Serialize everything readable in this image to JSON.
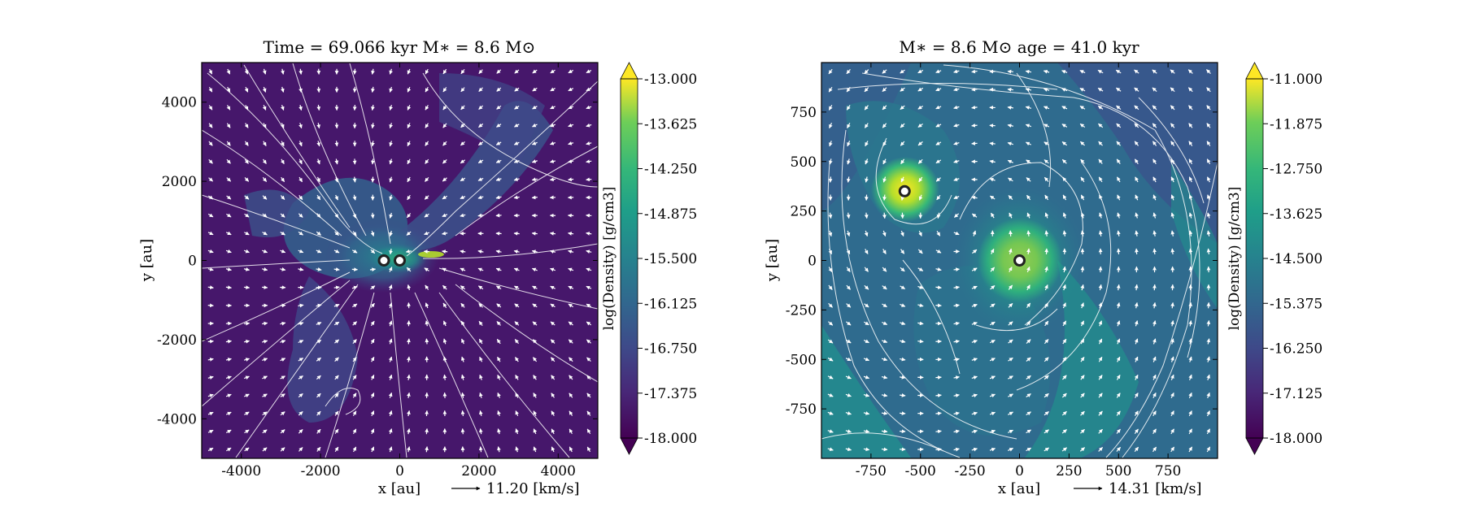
{
  "chart_data": [
    {
      "type": "heatmap",
      "title": "Time = 69.066 kyr    M∗ = 8.6 M⊙",
      "xlabel": "x [au]",
      "ylabel": "y [au]",
      "xlim": [
        -5000,
        5000
      ],
      "ylim": [
        -5000,
        5000
      ],
      "xticks": [
        -4000,
        -2000,
        0,
        2000,
        4000
      ],
      "xtick_labels": [
        "-4000",
        "-2000",
        "0",
        "2000",
        "4000"
      ],
      "yticks": [
        -4000,
        -2000,
        0,
        2000,
        4000
      ],
      "ytick_labels": [
        "-4000",
        "-2000",
        "0",
        "2000",
        "4000"
      ],
      "velocity_key": "11.20 [km/s]",
      "colorbar": {
        "label": "log(Density) [g/cm3]",
        "range": [
          -18.0,
          -13.0
        ],
        "ticks": [
          -13.0,
          -13.625,
          -14.25,
          -14.875,
          -15.5,
          -16.125,
          -16.75,
          -17.375,
          -18.0
        ],
        "tick_labels": [
          "-13.000",
          "-13.625",
          "-14.250",
          "-14.875",
          "-15.500",
          "-16.125",
          "-16.750",
          "-17.375",
          "-18.000"
        ]
      },
      "sinks": [
        {
          "x": -400,
          "y": 0
        },
        {
          "x": 0,
          "y": 0
        }
      ]
    },
    {
      "type": "heatmap",
      "title": "M∗ = 8.6 M⊙          age = 41.0 kyr",
      "xlabel": "x [au]",
      "ylabel": "y [au]",
      "xlim": [
        -1000,
        1000
      ],
      "ylim": [
        -1000,
        1000
      ],
      "xticks": [
        -750,
        -500,
        -250,
        0,
        250,
        500,
        750
      ],
      "xtick_labels": [
        "-750",
        "-500",
        "-250",
        "0",
        "250",
        "500",
        "750"
      ],
      "yticks": [
        -750,
        -500,
        -250,
        0,
        250,
        500,
        750
      ],
      "ytick_labels": [
        "-750",
        "-500",
        "-250",
        "0",
        "250",
        "500",
        "750"
      ],
      "velocity_key": "14.31 [km/s]",
      "colorbar": {
        "label": "log(Density) [g/cm3]",
        "range": [
          -18.0,
          -11.0
        ],
        "ticks": [
          -11.0,
          -11.875,
          -12.75,
          -13.625,
          -14.5,
          -15.375,
          -16.25,
          -17.125,
          -18.0
        ],
        "tick_labels": [
          "-11.000",
          "-11.875",
          "-12.750",
          "-13.625",
          "-14.500",
          "-15.375",
          "-16.250",
          "-17.125",
          "-18.000"
        ]
      },
      "sinks": [
        {
          "x": -580,
          "y": 350
        },
        {
          "x": 0,
          "y": 0
        }
      ]
    }
  ],
  "colors": {
    "viridis_low": "#440154",
    "viridis_high": "#fde725",
    "arrows": "#ffffff"
  }
}
